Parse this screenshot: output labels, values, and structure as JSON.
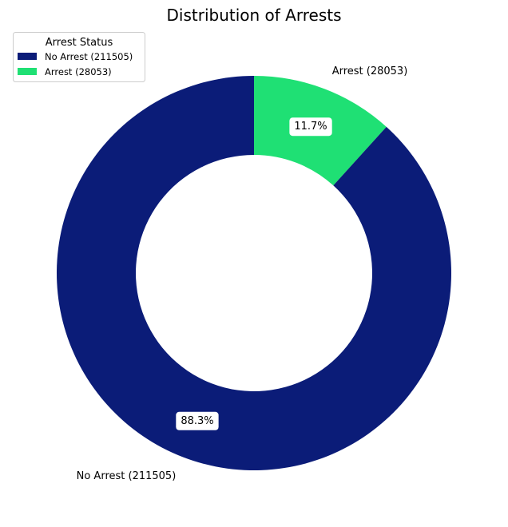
{
  "chart_data": {
    "type": "pie",
    "variant": "donut",
    "title": "Distribution of Arrests",
    "legend": {
      "title": "Arrest Status",
      "placement": "top-left",
      "entries": [
        "No Arrest (211505)",
        "Arrest (28053)"
      ]
    },
    "start_angle_deg": 90,
    "direction": "clockwise",
    "slices": [
      {
        "name": "Arrest",
        "value": 28053,
        "label": "Arrest (28053)",
        "percent_label": "11.7%",
        "color": "#1fe074"
      },
      {
        "name": "No Arrest",
        "value": 211505,
        "label": "No Arrest (211505)",
        "percent_label": "88.3%",
        "color": "#0b1c78"
      }
    ]
  }
}
